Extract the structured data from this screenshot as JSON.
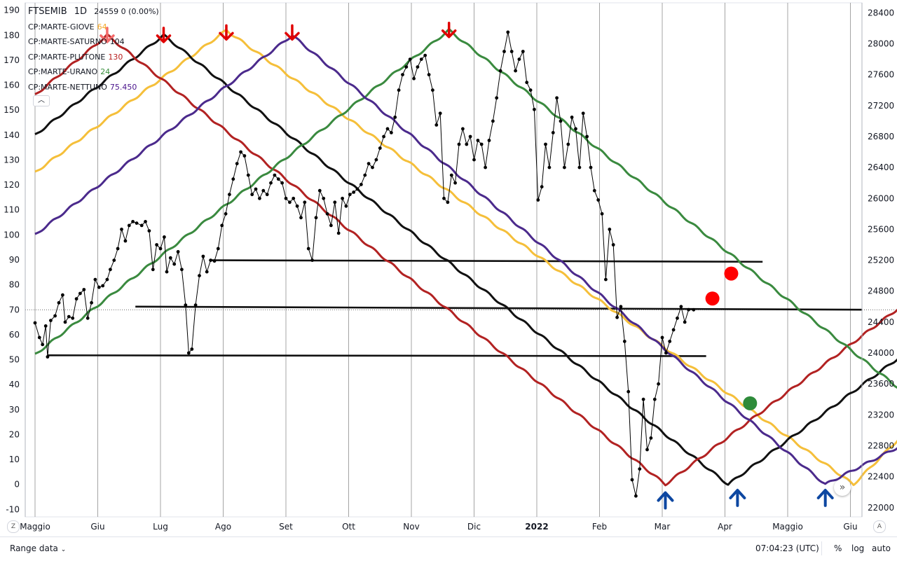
{
  "legend": {
    "symbol": "FTSEMIB",
    "interval": "1D",
    "values": "24559  0 (0.00%)",
    "items": [
      {
        "label": "CP:MARTE-GIOVE",
        "value": "64",
        "color": "#f5a623"
      },
      {
        "label": "CP:MARTE-SATURNO",
        "value": "104",
        "color": "#131722"
      },
      {
        "label": "CP:MARTE-PLUTONE",
        "value": "130",
        "color": "#b71c1c"
      },
      {
        "label": "CP:MARTE-URANO",
        "value": "24",
        "color": "#388e3c"
      },
      {
        "label": "CP:MARTE-NETTUNO",
        "value": "75.450",
        "color": "#4a148c"
      }
    ],
    "collapse_icon": "chevron-up-icon"
  },
  "bottom_bar": {
    "range_label": "Range data",
    "range_icon": "chevron-down-icon",
    "clock": "07:04:23 (UTC)",
    "percent": "%",
    "log": "log",
    "auto": "auto"
  },
  "corner": {
    "left": "Z",
    "right": "A",
    "scroll": "»"
  },
  "chart_data": {
    "type": "line",
    "grid": true,
    "x_ticks": [
      "Maggio",
      "Giu",
      "Lug",
      "Ago",
      "Set",
      "Ott",
      "Nov",
      "Dic",
      "2022",
      "Feb",
      "Mar",
      "Apr",
      "Maggio",
      "Giu"
    ],
    "left_axis": {
      "ticks": [
        190,
        180,
        170,
        160,
        150,
        140,
        130,
        120,
        110,
        100,
        90,
        80,
        70,
        60,
        50,
        40,
        30,
        20,
        10,
        0,
        -10
      ],
      "ylim": [
        -13,
        193
      ]
    },
    "right_axis": {
      "ticks": [
        28400,
        28000,
        27600,
        27200,
        26800,
        26400,
        26000,
        25600,
        25200,
        24800,
        24400,
        24000,
        23600,
        23200,
        22800,
        22400,
        22000
      ],
      "ylim": [
        21880,
        28530
      ]
    },
    "cycles": [
      {
        "name": "CP:MARTE-GIOVE",
        "color": "#f5bf3a",
        "points": [
          [
            0,
            125
          ],
          [
            3.05,
            182
          ],
          [
            13.05,
            0
          ],
          [
            14,
            24
          ]
        ]
      },
      {
        "name": "CP:MARTE-SATURNO",
        "color": "#111111",
        "points": [
          [
            0,
            140
          ],
          [
            2.05,
            180
          ],
          [
            11.05,
            0
          ],
          [
            14,
            55
          ]
        ]
      },
      {
        "name": "CP:MARTE-PLUTONE",
        "color": "#b22222",
        "points": [
          [
            0,
            156
          ],
          [
            1.15,
            180
          ],
          [
            10.05,
            0
          ],
          [
            14,
            75
          ]
        ]
      },
      {
        "name": "CP:MARTE-URANO",
        "color": "#3a8a3f",
        "points": [
          [
            0,
            52
          ],
          [
            6.6,
            182
          ],
          [
            14,
            34
          ]
        ]
      },
      {
        "name": "CP:MARTE-NETTUNO",
        "color": "#4b2a8c",
        "points": [
          [
            0,
            100
          ],
          [
            4.1,
            180
          ],
          [
            12.6,
            0
          ],
          [
            14,
            18
          ]
        ]
      }
    ],
    "price_series": {
      "name": "FTSEMIB",
      "color": "#000000",
      "points": [
        [
          0,
          24390
        ],
        [
          0.07,
          24200
        ],
        [
          0.12,
          24110
        ],
        [
          0.17,
          24350
        ],
        [
          0.2,
          23950
        ],
        [
          0.25,
          24420
        ],
        [
          0.32,
          24480
        ],
        [
          0.38,
          24650
        ],
        [
          0.44,
          24750
        ],
        [
          0.48,
          24400
        ],
        [
          0.54,
          24470
        ],
        [
          0.6,
          24450
        ],
        [
          0.66,
          24700
        ],
        [
          0.72,
          24770
        ],
        [
          0.78,
          24820
        ],
        [
          0.84,
          24450
        ],
        [
          0.9,
          24650
        ],
        [
          0.96,
          24950
        ],
        [
          1.02,
          24850
        ],
        [
          1.08,
          24870
        ],
        [
          1.15,
          24950
        ],
        [
          1.2,
          25080
        ],
        [
          1.26,
          25200
        ],
        [
          1.32,
          25350
        ],
        [
          1.38,
          25600
        ],
        [
          1.44,
          25450
        ],
        [
          1.5,
          25650
        ],
        [
          1.56,
          25700
        ],
        [
          1.62,
          25680
        ],
        [
          1.7,
          25650
        ],
        [
          1.76,
          25700
        ],
        [
          1.82,
          25580
        ],
        [
          1.88,
          25080
        ],
        [
          1.94,
          25400
        ],
        [
          2.0,
          25350
        ],
        [
          2.06,
          25500
        ],
        [
          2.1,
          25050
        ],
        [
          2.16,
          25230
        ],
        [
          2.22,
          25150
        ],
        [
          2.28,
          25310
        ],
        [
          2.34,
          25080
        ],
        [
          2.4,
          24620
        ],
        [
          2.45,
          24000
        ],
        [
          2.5,
          24050
        ],
        [
          2.56,
          24620
        ],
        [
          2.62,
          25000
        ],
        [
          2.68,
          25250
        ],
        [
          2.74,
          25050
        ],
        [
          2.8,
          25200
        ],
        [
          2.86,
          25190
        ],
        [
          2.92,
          25350
        ],
        [
          2.98,
          25650
        ],
        [
          3.04,
          25800
        ],
        [
          3.1,
          26050
        ],
        [
          3.16,
          26250
        ],
        [
          3.22,
          26450
        ],
        [
          3.28,
          26600
        ],
        [
          3.34,
          26550
        ],
        [
          3.4,
          26300
        ],
        [
          3.46,
          26050
        ],
        [
          3.52,
          26120
        ],
        [
          3.58,
          26000
        ],
        [
          3.64,
          26100
        ],
        [
          3.7,
          26050
        ],
        [
          3.76,
          26200
        ],
        [
          3.82,
          26300
        ],
        [
          3.88,
          26250
        ],
        [
          3.94,
          26200
        ],
        [
          4.0,
          26000
        ],
        [
          4.06,
          25950
        ],
        [
          4.12,
          26000
        ],
        [
          4.18,
          25900
        ],
        [
          4.24,
          25750
        ],
        [
          4.3,
          25950
        ],
        [
          4.36,
          25350
        ],
        [
          4.42,
          25200
        ],
        [
          4.48,
          25750
        ],
        [
          4.54,
          26100
        ],
        [
          4.6,
          26000
        ],
        [
          4.66,
          25800
        ],
        [
          4.72,
          25650
        ],
        [
          4.78,
          25950
        ],
        [
          4.84,
          25550
        ],
        [
          4.9,
          26000
        ],
        [
          4.96,
          25900
        ],
        [
          5.02,
          26050
        ],
        [
          5.08,
          26080
        ],
        [
          5.14,
          26120
        ],
        [
          5.2,
          26180
        ],
        [
          5.26,
          26300
        ],
        [
          5.32,
          26450
        ],
        [
          5.38,
          26400
        ],
        [
          5.44,
          26500
        ],
        [
          5.5,
          26650
        ],
        [
          5.56,
          26800
        ],
        [
          5.62,
          26900
        ],
        [
          5.68,
          26850
        ],
        [
          5.74,
          27050
        ],
        [
          5.8,
          27400
        ],
        [
          5.86,
          27600
        ],
        [
          5.92,
          27700
        ],
        [
          5.98,
          27800
        ],
        [
          6.04,
          27550
        ],
        [
          6.1,
          27700
        ],
        [
          6.16,
          27800
        ],
        [
          6.22,
          27850
        ],
        [
          6.28,
          27600
        ],
        [
          6.34,
          27400
        ],
        [
          6.4,
          26950
        ],
        [
          6.46,
          27100
        ],
        [
          6.52,
          26000
        ],
        [
          6.58,
          25950
        ],
        [
          6.64,
          26300
        ],
        [
          6.7,
          26200
        ],
        [
          6.76,
          26700
        ],
        [
          6.82,
          26900
        ],
        [
          6.88,
          26700
        ],
        [
          6.94,
          26800
        ],
        [
          7.0,
          26500
        ],
        [
          7.06,
          26750
        ],
        [
          7.12,
          26700
        ],
        [
          7.18,
          26400
        ],
        [
          7.24,
          26750
        ],
        [
          7.3,
          27000
        ],
        [
          7.36,
          27300
        ],
        [
          7.42,
          27650
        ],
        [
          7.48,
          27900
        ],
        [
          7.54,
          28150
        ],
        [
          7.6,
          27900
        ],
        [
          7.66,
          27650
        ],
        [
          7.72,
          27800
        ],
        [
          7.78,
          27900
        ],
        [
          7.84,
          27500
        ],
        [
          7.9,
          27400
        ],
        [
          7.96,
          27150
        ],
        [
          8.02,
          25980
        ],
        [
          8.08,
          26150
        ],
        [
          8.14,
          26700
        ],
        [
          8.2,
          26400
        ],
        [
          8.26,
          26850
        ],
        [
          8.32,
          27300
        ],
        [
          8.38,
          27000
        ],
        [
          8.44,
          26400
        ],
        [
          8.5,
          26700
        ],
        [
          8.56,
          27050
        ],
        [
          8.62,
          26900
        ],
        [
          8.68,
          26400
        ],
        [
          8.74,
          27100
        ],
        [
          8.8,
          26800
        ],
        [
          8.86,
          26400
        ],
        [
          8.92,
          26100
        ],
        [
          8.98,
          25980
        ],
        [
          9.04,
          25800
        ],
        [
          9.1,
          24950
        ],
        [
          9.16,
          25600
        ],
        [
          9.22,
          25400
        ],
        [
          9.28,
          24460
        ],
        [
          9.34,
          24600
        ],
        [
          9.4,
          24150
        ],
        [
          9.46,
          23500
        ],
        [
          9.52,
          22360
        ],
        [
          9.58,
          22150
        ],
        [
          9.64,
          22500
        ],
        [
          9.7,
          23400
        ],
        [
          9.76,
          22750
        ],
        [
          9.82,
          22900
        ],
        [
          9.88,
          23400
        ],
        [
          9.94,
          23600
        ],
        [
          10.0,
          24200
        ],
        [
          10.06,
          24000
        ],
        [
          10.12,
          24150
        ],
        [
          10.18,
          24300
        ],
        [
          10.24,
          24450
        ],
        [
          10.3,
          24600
        ],
        [
          10.36,
          24400
        ],
        [
          10.42,
          24560
        ],
        [
          10.5,
          24559
        ]
      ]
    },
    "horizontal_lines": [
      {
        "x0": 0.2,
        "x1": 10.7,
        "y0": 23970,
        "y1": 23960,
        "axis": "right"
      },
      {
        "x0": 1.6,
        "x1": 14,
        "y0": 24600,
        "y1": 24560,
        "axis": "right"
      },
      {
        "x0": 2.82,
        "x1": 11.6,
        "y0": 25200,
        "y1": 25180,
        "axis": "right"
      }
    ],
    "reference_line": {
      "y": 24559,
      "axis": "right",
      "x0": 0,
      "x1": 14
    },
    "markers": [
      {
        "kind": "arrow-down",
        "x": 1.15,
        "y": 179,
        "color": "#f36a6a"
      },
      {
        "kind": "arrow-down",
        "x": 2.05,
        "y": 179,
        "color": "#e00000"
      },
      {
        "kind": "arrow-down",
        "x": 3.05,
        "y": 180,
        "color": "#e00000"
      },
      {
        "kind": "arrow-down",
        "x": 4.1,
        "y": 180,
        "color": "#e00000"
      },
      {
        "kind": "arrow-down",
        "x": 6.6,
        "y": 181,
        "color": "#e00000"
      },
      {
        "kind": "arrow-up",
        "x": 10.05,
        "y": -5,
        "color": "#0d47a1"
      },
      {
        "kind": "arrow-up",
        "x": 11.2,
        "y": -4,
        "color": "#0d47a1"
      },
      {
        "kind": "arrow-up",
        "x": 12.6,
        "y": -4,
        "color": "#0d47a1"
      },
      {
        "kind": "dot",
        "x": 11.1,
        "y": 84.5,
        "color": "#ff0000"
      },
      {
        "kind": "dot",
        "x": 10.8,
        "y": 74.5,
        "color": "#ff0000"
      },
      {
        "kind": "dot",
        "x": 11.4,
        "y": 32.5,
        "color": "#2e8b3a"
      }
    ]
  }
}
